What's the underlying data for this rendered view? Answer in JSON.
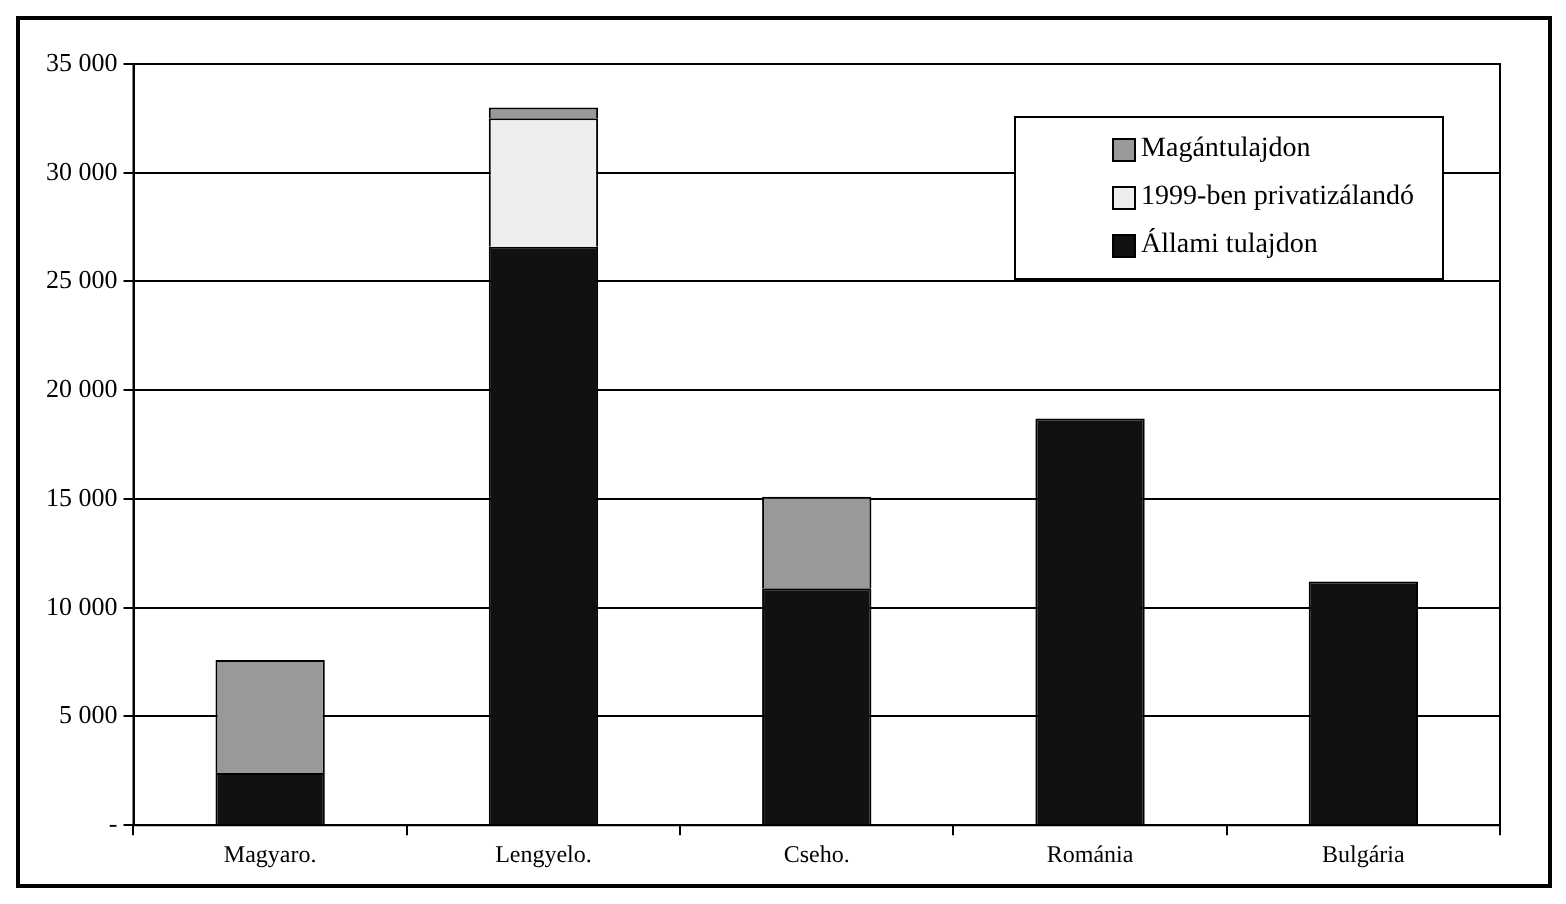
{
  "chart_data": {
    "type": "bar",
    "stacked": true,
    "categories": [
      "Magyaro.",
      "Lengyelo.",
      "Cseho.",
      "Románia",
      "Bulgária"
    ],
    "series": [
      {
        "name": "Állami tulajdon",
        "color": "#111111",
        "values": [
          2400,
          26600,
          10900,
          18700,
          11200
        ]
      },
      {
        "name": "1999-ben privatizálandó",
        "color": "#eeeeee",
        "values": [
          0,
          5900,
          0,
          0,
          0
        ]
      },
      {
        "name": "Magántulajdon",
        "color": "#999999",
        "values": [
          5200,
          500,
          4200,
          0,
          0
        ]
      }
    ],
    "ylim": [
      0,
      35000
    ],
    "yticks": [
      {
        "value": 0,
        "label": "-"
      },
      {
        "value": 5000,
        "label": "5 000"
      },
      {
        "value": 10000,
        "label": "10 000"
      },
      {
        "value": 15000,
        "label": "15 000"
      },
      {
        "value": 20000,
        "label": "20 000"
      },
      {
        "value": 25000,
        "label": "25 000"
      },
      {
        "value": 30000,
        "label": "30 000"
      },
      {
        "value": 35000,
        "label": "35 000"
      }
    ],
    "grid": "y",
    "legend": "top right"
  }
}
